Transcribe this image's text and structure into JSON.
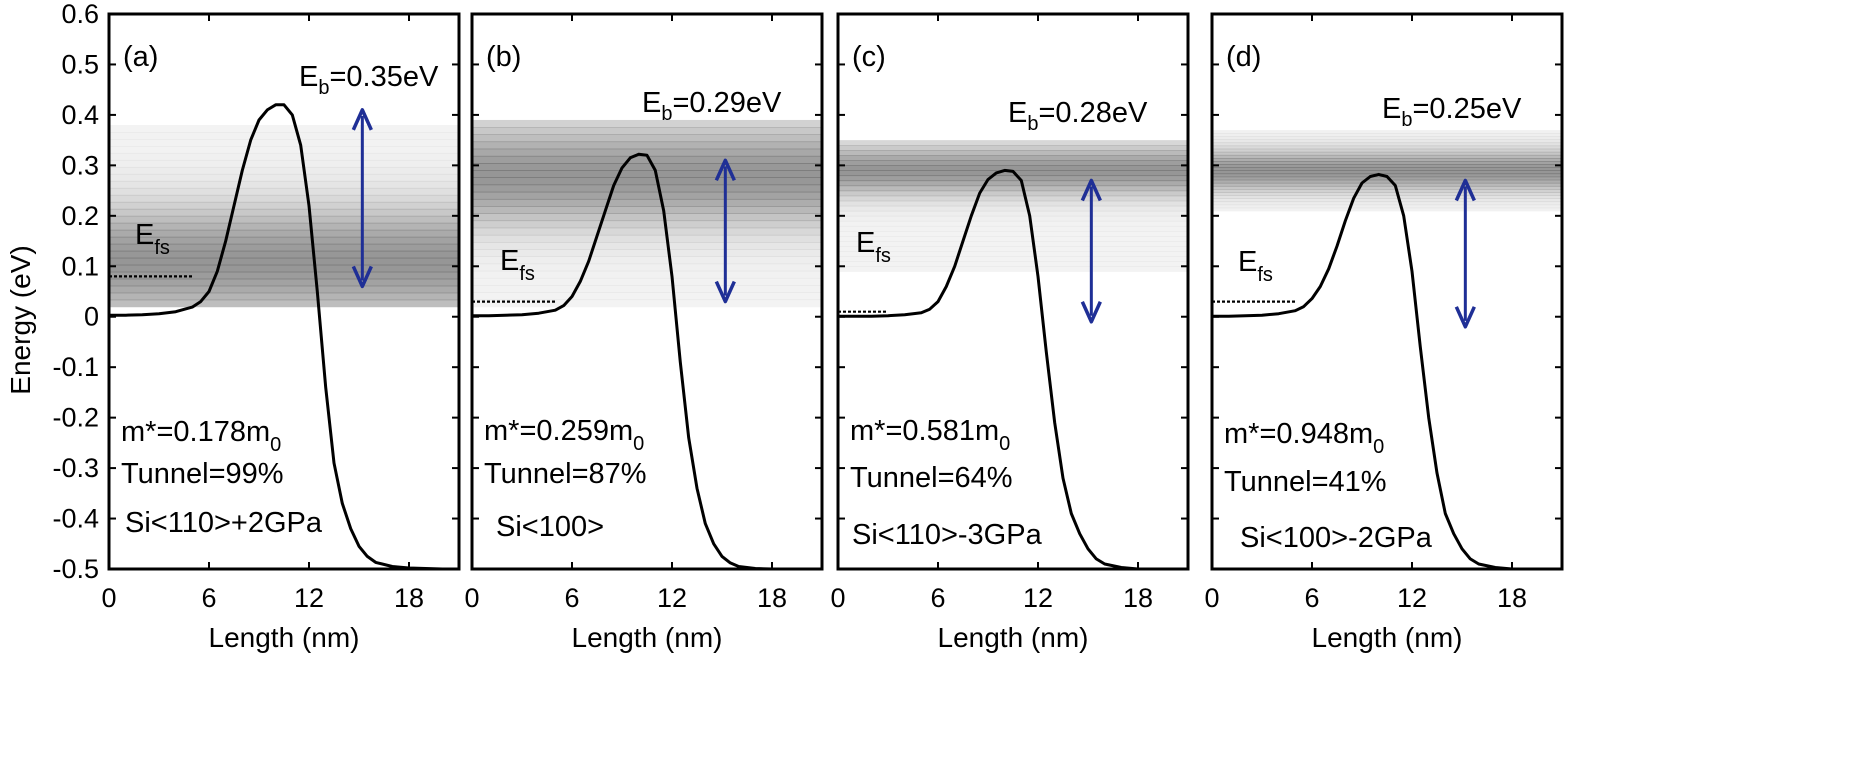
{
  "chart_data": {
    "type": "line",
    "ylabel": "Energy (eV)",
    "ylim": [
      -0.5,
      0.6
    ],
    "xlim": [
      0,
      21
    ],
    "y_ticks": [
      "0.6",
      "0.5",
      "0.4",
      "0.3",
      "0.2",
      "0.1",
      "0",
      "-0.1",
      "-0.2",
      "-0.3",
      "-0.4",
      "-0.5"
    ],
    "x_ticks": [
      "0",
      "6",
      "12",
      "18"
    ],
    "xlabel": "Length (nm)",
    "colors": {
      "curve": "#000000",
      "arrow": "#1f2f96",
      "shade": "#555555"
    },
    "panels": [
      {
        "label": "(a)",
        "eb_prefix": "E",
        "eb_sub": "b",
        "eb_value": "=0.35eV",
        "efs_main": "E",
        "efs_sub": "fs",
        "mass_prefix": "m*=0.178m",
        "mass_sub": "0",
        "tunnel": "Tunnel=99%",
        "material": "Si<110>+2GPa",
        "fermi_level": 0.08,
        "barrier_peak": 0.42,
        "arrow_range": [
          0.06,
          0.41
        ],
        "band_range": [
          0.02,
          0.38
        ],
        "band_center": 0.11,
        "band_width": 0.11,
        "curve": {
          "x": [
            0,
            1,
            2,
            3,
            4,
            5,
            5.5,
            6,
            6.5,
            7,
            7.5,
            8,
            8.5,
            9,
            9.5,
            10,
            10.5,
            11,
            11.5,
            12,
            12.5,
            13,
            13.5,
            14,
            14.5,
            15,
            15.5,
            16,
            17,
            18,
            19,
            20,
            21
          ],
          "y": [
            0.003,
            0.003,
            0.004,
            0.006,
            0.01,
            0.019,
            0.03,
            0.05,
            0.09,
            0.15,
            0.22,
            0.29,
            0.35,
            0.39,
            0.41,
            0.42,
            0.42,
            0.4,
            0.34,
            0.22,
            0.05,
            -0.14,
            -0.29,
            -0.37,
            -0.42,
            -0.455,
            -0.475,
            -0.487,
            -0.495,
            -0.498,
            -0.499,
            -0.5,
            -0.5
          ]
        }
      },
      {
        "label": "(b)",
        "eb_prefix": "E",
        "eb_sub": "b",
        "eb_value": "=0.29eV",
        "efs_main": "E",
        "efs_sub": "fs",
        "mass_prefix": "m*=0.259m",
        "mass_sub": "0",
        "tunnel": "Tunnel=87%",
        "material": "Si<100>",
        "fermi_level": 0.03,
        "barrier_peak": 0.32,
        "arrow_range": [
          0.03,
          0.31
        ],
        "band_range": [
          0.02,
          0.39
        ],
        "band_center": 0.28,
        "band_width": 0.1,
        "curve": {
          "x": [
            0,
            1,
            2,
            3,
            4,
            5,
            5.5,
            6,
            6.5,
            7,
            7.5,
            8,
            8.5,
            9,
            9.5,
            10,
            10.5,
            11,
            11.5,
            12,
            12.5,
            13,
            13.5,
            14,
            14.5,
            15,
            15.5,
            16,
            17,
            18,
            19,
            20,
            21
          ],
          "y": [
            0.002,
            0.002,
            0.003,
            0.004,
            0.007,
            0.013,
            0.022,
            0.04,
            0.07,
            0.11,
            0.16,
            0.21,
            0.26,
            0.295,
            0.315,
            0.322,
            0.32,
            0.29,
            0.21,
            0.08,
            -0.09,
            -0.24,
            -0.34,
            -0.41,
            -0.45,
            -0.475,
            -0.488,
            -0.495,
            -0.499,
            -0.5,
            -0.5,
            -0.5,
            -0.5
          ]
        }
      },
      {
        "label": "(c)",
        "eb_prefix": "E",
        "eb_sub": "b",
        "eb_value": "=0.28eV",
        "efs_main": "E",
        "efs_sub": "fs",
        "mass_prefix": "m*=0.581m",
        "mass_sub": "0",
        "tunnel": "Tunnel=64%",
        "material": "Si<110>-3GPa",
        "fermi_level": 0.01,
        "barrier_peak": 0.29,
        "arrow_range": [
          -0.01,
          0.27
        ],
        "band_range": [
          0.09,
          0.35
        ],
        "band_center": 0.29,
        "band_width": 0.05,
        "curve": {
          "x": [
            0,
            1,
            2,
            3,
            4,
            5,
            5.5,
            6,
            6.5,
            7,
            7.5,
            8,
            8.5,
            9,
            9.5,
            10,
            10.5,
            11,
            11.5,
            12,
            12.5,
            13,
            13.5,
            14,
            14.5,
            15,
            15.5,
            16,
            17,
            18,
            19,
            20,
            21
          ],
          "y": [
            0.001,
            0.001,
            0.001,
            0.002,
            0.004,
            0.008,
            0.015,
            0.03,
            0.06,
            0.1,
            0.15,
            0.2,
            0.245,
            0.272,
            0.285,
            0.29,
            0.288,
            0.27,
            0.2,
            0.08,
            -0.07,
            -0.21,
            -0.32,
            -0.39,
            -0.43,
            -0.46,
            -0.48,
            -0.49,
            -0.497,
            -0.5,
            -0.5,
            -0.5,
            -0.5
          ]
        }
      },
      {
        "label": "(d)",
        "eb_prefix": "E",
        "eb_sub": "b",
        "eb_value": "=0.25eV",
        "efs_main": "E",
        "efs_sub": "fs",
        "mass_prefix": "m*=0.948m",
        "mass_sub": "0",
        "tunnel": "Tunnel=41%",
        "material": "Si<100>-2GPa",
        "fermi_level": 0.03,
        "barrier_peak": 0.28,
        "arrow_range": [
          -0.02,
          0.27
        ],
        "band_range": [
          0.21,
          0.37
        ],
        "band_center": 0.29,
        "band_width": 0.04,
        "curve": {
          "x": [
            0,
            1,
            2,
            3,
            4,
            5,
            5.5,
            6,
            6.5,
            7,
            7.5,
            8,
            8.5,
            9,
            9.5,
            10,
            10.5,
            11,
            11.5,
            12,
            12.5,
            13,
            13.5,
            14,
            14.5,
            15,
            15.5,
            16,
            17,
            18,
            19,
            20,
            21
          ],
          "y": [
            0.001,
            0.001,
            0.002,
            0.003,
            0.006,
            0.012,
            0.02,
            0.036,
            0.06,
            0.095,
            0.14,
            0.19,
            0.235,
            0.265,
            0.278,
            0.282,
            0.278,
            0.26,
            0.2,
            0.09,
            -0.06,
            -0.2,
            -0.31,
            -0.39,
            -0.43,
            -0.46,
            -0.48,
            -0.49,
            -0.497,
            -0.5,
            -0.5,
            -0.5,
            -0.5
          ]
        }
      }
    ]
  }
}
